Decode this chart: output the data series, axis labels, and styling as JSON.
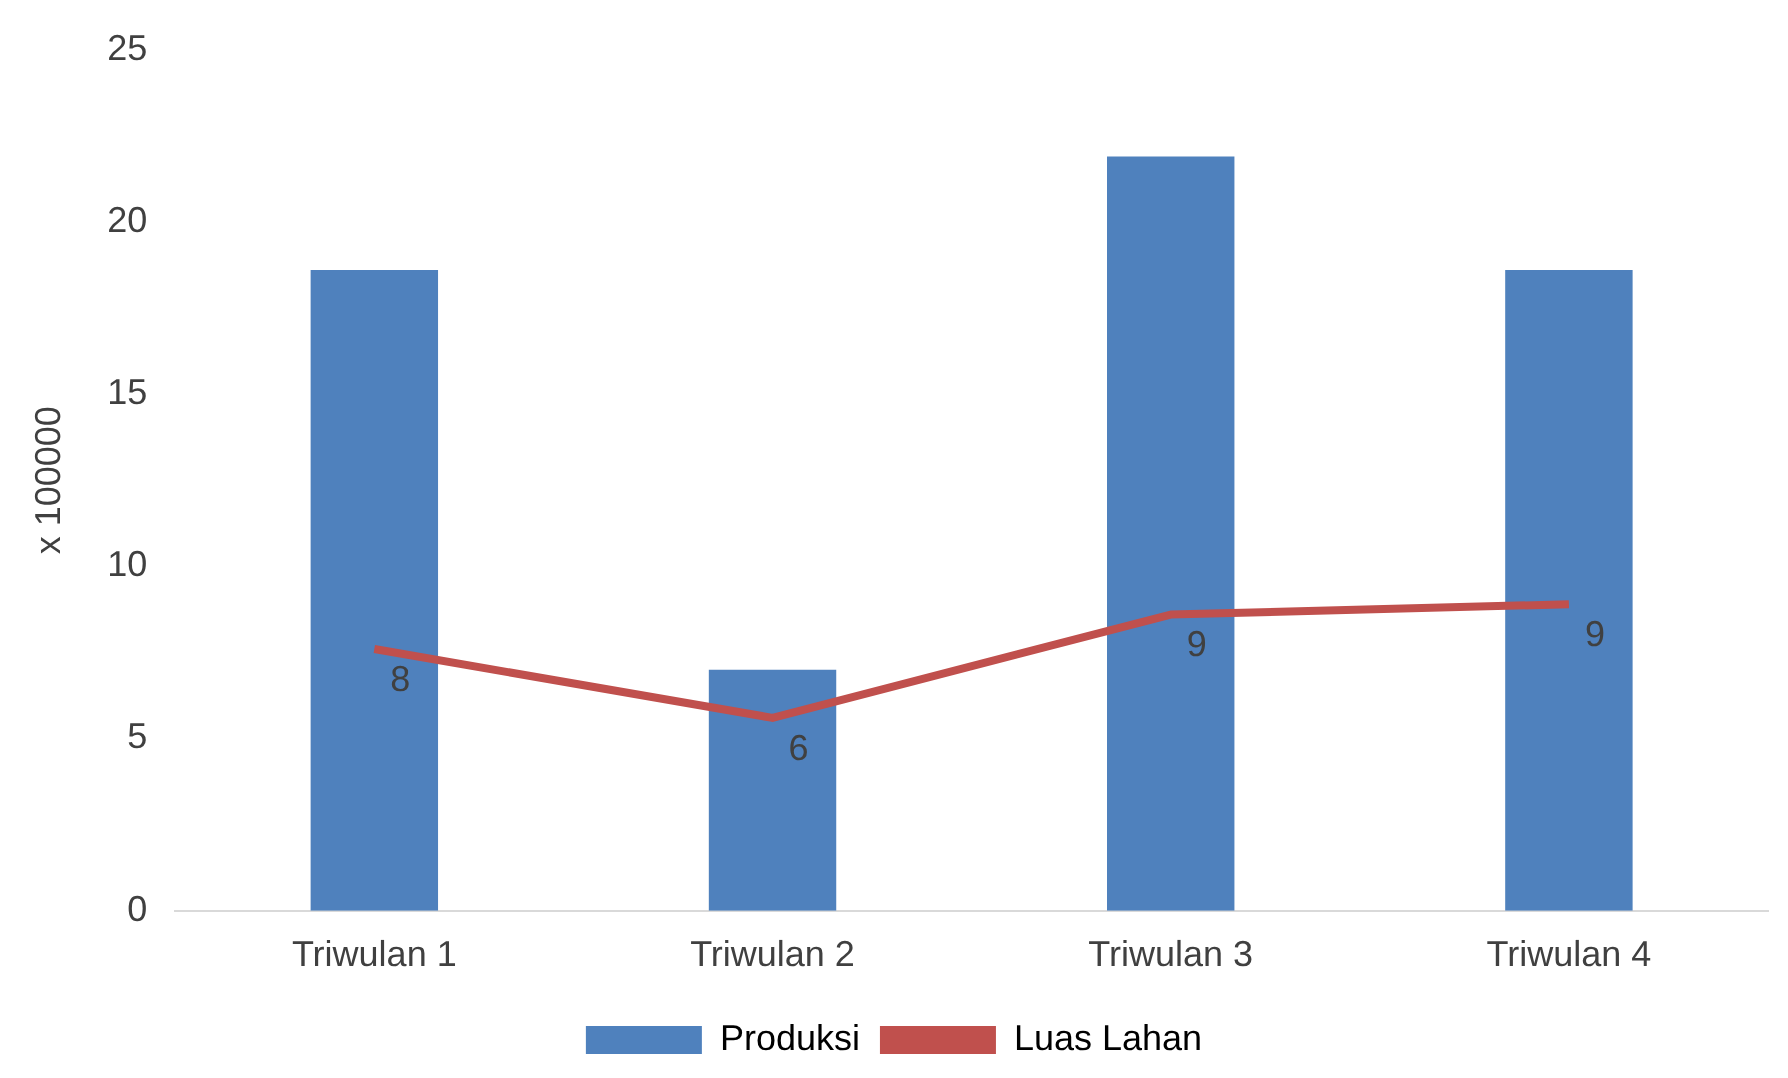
{
  "chart_data": {
    "type": "bar",
    "ylabel": "x 100000",
    "categories": [
      "Triwulan 1",
      "Triwulan 2",
      "Triwulan 3",
      "Triwulan 4"
    ],
    "series": [
      {
        "name": "Produksi",
        "color": "#4f81bd",
        "values": [
          18.6,
          7.0,
          21.9,
          18.6
        ]
      },
      {
        "name": "Luas Lahan",
        "type": "line",
        "color": "#c0504d",
        "values": [
          7.6,
          5.6,
          8.6,
          8.9
        ],
        "value_labels": [
          "8",
          "6",
          "9",
          "9"
        ]
      }
    ],
    "ylim": [
      0,
      25
    ],
    "yticks": [
      0,
      5,
      10,
      15,
      20,
      25
    ],
    "grid": false,
    "legend": "bottom",
    "marker": "none"
  }
}
